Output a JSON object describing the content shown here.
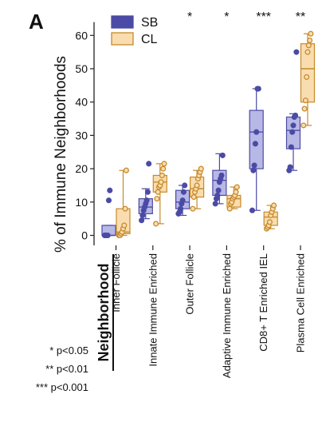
{
  "chart_data": {
    "type": "box",
    "panel_label": "A",
    "ylabel": "% of Immune Neighborhoods",
    "xlabel": "Neighborhood",
    "ylim": [
      -3,
      64
    ],
    "yticks": [
      0,
      10,
      20,
      30,
      40,
      50,
      60
    ],
    "categories": [
      "Inner Follicle",
      "Innate Immune Enriched",
      "Outer Follicle",
      "Adaptive Immune Enriched",
      "CD8+ T Enriched IEL",
      "Plasma Cell Enriched"
    ],
    "significance": [
      "",
      "",
      "*",
      "*",
      "***",
      "**"
    ],
    "series": [
      {
        "name": "SB",
        "color": "#4b4ba6",
        "fill": "#b8b8e6",
        "boxes": [
          {
            "q1": 0,
            "median": 0,
            "q3": 3,
            "whislo": 0,
            "whishi": 3
          },
          {
            "q1": 6.5,
            "median": 8.5,
            "q3": 11,
            "whislo": 5,
            "whishi": 14
          },
          {
            "q1": 8,
            "median": 10,
            "q3": 13.5,
            "whislo": 6,
            "whishi": 15
          },
          {
            "q1": 12,
            "median": 16.5,
            "q3": 19.5,
            "whislo": 9.5,
            "whishi": 24.5
          },
          {
            "q1": 20,
            "median": 31,
            "q3": 37.5,
            "whislo": 7.5,
            "whishi": 44
          },
          {
            "q1": 26,
            "median": 31.5,
            "q3": 35.5,
            "whislo": 19.5,
            "whishi": 36.5
          }
        ],
        "points": [
          [
            0,
            0,
            0,
            0,
            10.5,
            13.5
          ],
          [
            4.5,
            6,
            7.5,
            8.5,
            9.5,
            10.5,
            13,
            21.5
          ],
          [
            6.5,
            7,
            8,
            9.5,
            10.5,
            13,
            15
          ],
          [
            9.5,
            11,
            12,
            13.5,
            16,
            17,
            18,
            24
          ],
          [
            7.5,
            19.5,
            21,
            27.5,
            31,
            44,
            44
          ],
          [
            19.5,
            20.5,
            26.5,
            31,
            33,
            35.5,
            36,
            55
          ]
        ]
      },
      {
        "name": "CL",
        "color": "#c78a2a",
        "fill": "#f9ddb0",
        "boxes": [
          {
            "q1": 0.5,
            "median": 1,
            "q3": 8,
            "whislo": 0,
            "whishi": 19.5
          },
          {
            "q1": 13,
            "median": 16,
            "q3": 18,
            "whislo": 3.5,
            "whishi": 21.5
          },
          {
            "q1": 11.5,
            "median": 14,
            "q3": 17.5,
            "whislo": 8,
            "whishi": 19.5
          },
          {
            "q1": 8.5,
            "median": 11,
            "q3": 12,
            "whislo": 8,
            "whishi": 14.5
          },
          {
            "q1": 3,
            "median": 5.5,
            "q3": 7,
            "whislo": 2,
            "whishi": 9
          },
          {
            "q1": 40,
            "median": 50,
            "q3": 57.5,
            "whislo": 33,
            "whishi": 60.5
          }
        ],
        "points": [
          [
            0,
            0,
            0.5,
            1,
            2,
            3,
            8,
            19.5
          ],
          [
            3.5,
            11,
            13,
            14.5,
            15,
            16,
            18,
            20,
            21.5
          ],
          [
            8,
            11.5,
            13,
            14,
            15,
            17,
            18,
            19,
            20
          ],
          [
            8,
            9.5,
            10,
            11,
            11.5,
            12,
            13,
            14.5
          ],
          [
            2,
            2.5,
            3,
            4,
            6,
            7,
            8,
            9
          ],
          [
            33,
            38,
            40.5,
            47.5,
            55,
            57,
            58.5,
            60.5
          ]
        ]
      }
    ],
    "footnotes": [
      "* p<0.05",
      "** p<0.01",
      "*** p<0.001"
    ]
  }
}
